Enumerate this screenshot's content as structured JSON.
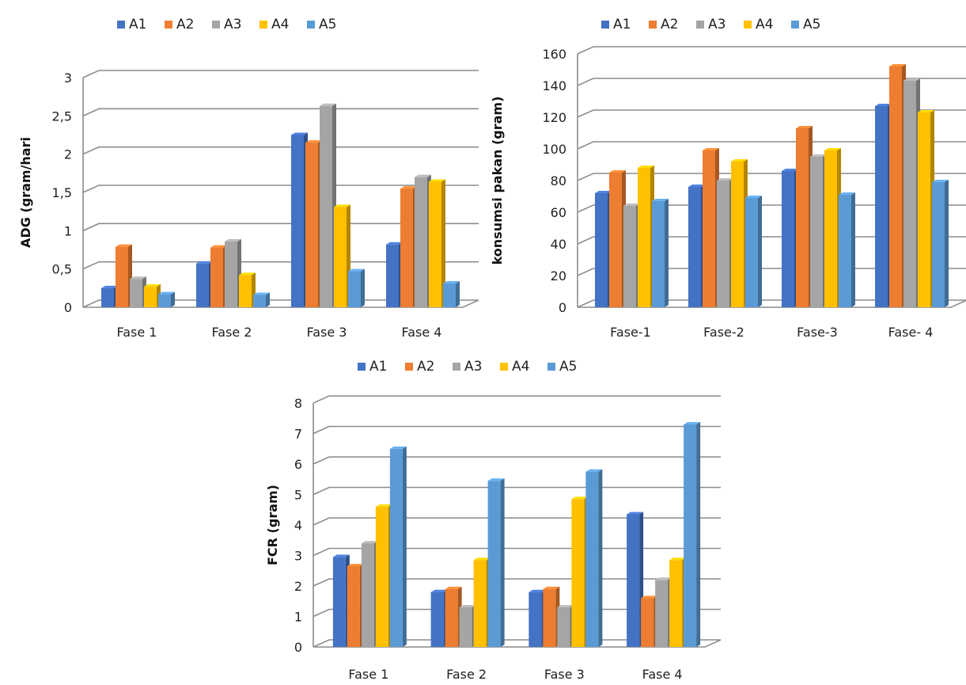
{
  "chart_data": [
    {
      "type": "bar",
      "title": "",
      "xlabel": "",
      "ylabel": "ADG (gram/hari",
      "categories": [
        "Fase 1",
        "Fase 2",
        "Fase 3",
        "Fase 4"
      ],
      "ylim": [
        0,
        3
      ],
      "yticks": [
        "0",
        "0,5",
        "1",
        "1,5",
        "2",
        "2,5",
        "3"
      ],
      "ytick_values": [
        0,
        0.5,
        1,
        1.5,
        2,
        2.5,
        3
      ],
      "legend_position": "top",
      "grid": true,
      "series": [
        {
          "name": "A1",
          "color": "#4472C4",
          "values": [
            0.25,
            0.57,
            2.25,
            0.82
          ]
        },
        {
          "name": "A2",
          "color": "#ED7D31",
          "values": [
            0.79,
            0.78,
            2.15,
            1.55
          ]
        },
        {
          "name": "A3",
          "color": "#A5A5A5",
          "values": [
            0.37,
            0.86,
            2.63,
            1.7
          ]
        },
        {
          "name": "A4",
          "color": "#FFC000",
          "values": [
            0.27,
            0.42,
            1.31,
            1.64
          ]
        },
        {
          "name": "A5",
          "color": "#5B9BD5",
          "values": [
            0.17,
            0.16,
            0.47,
            0.31
          ]
        }
      ]
    },
    {
      "type": "bar",
      "title": "",
      "xlabel": "",
      "ylabel": "konsumsi pakan (gram)",
      "categories": [
        "Fase-1",
        "Fase-2",
        "Fase-3",
        "Fase- 4"
      ],
      "ylim": [
        0,
        160
      ],
      "yticks": [
        "0",
        "20",
        "40",
        "60",
        "80",
        "100",
        "120",
        "140",
        "160"
      ],
      "ytick_values": [
        0,
        20,
        40,
        60,
        80,
        100,
        120,
        140,
        160
      ],
      "legend_position": "top",
      "grid": true,
      "series": [
        {
          "name": "A1",
          "color": "#4472C4",
          "values": [
            72,
            76,
            86,
            127
          ]
        },
        {
          "name": "A2",
          "color": "#ED7D31",
          "values": [
            85,
            99,
            113,
            152
          ]
        },
        {
          "name": "A3",
          "color": "#A5A5A5",
          "values": [
            64,
            80,
            95,
            143
          ]
        },
        {
          "name": "A4",
          "color": "#FFC000",
          "values": [
            88,
            92,
            99,
            123
          ]
        },
        {
          "name": "A5",
          "color": "#5B9BD5",
          "values": [
            67,
            69,
            71,
            79
          ]
        }
      ]
    },
    {
      "type": "bar",
      "title": "",
      "xlabel": "",
      "ylabel": "FCR (gram)",
      "categories": [
        "Fase 1",
        "Fase 2",
        "Fase 3",
        "Fase 4"
      ],
      "ylim": [
        0,
        8
      ],
      "yticks": [
        "0",
        "1",
        "2",
        "3",
        "4",
        "5",
        "6",
        "7",
        "8"
      ],
      "ytick_values": [
        0,
        1,
        2,
        3,
        4,
        5,
        6,
        7,
        8
      ],
      "legend_position": "top",
      "grid": true,
      "series": [
        {
          "name": "A1",
          "color": "#4472C4",
          "values": [
            2.95,
            1.8,
            1.8,
            4.35
          ]
        },
        {
          "name": "A2",
          "color": "#ED7D31",
          "values": [
            2.65,
            1.9,
            1.9,
            1.6
          ]
        },
        {
          "name": "A3",
          "color": "#A5A5A5",
          "values": [
            3.4,
            1.3,
            1.3,
            2.2
          ]
        },
        {
          "name": "A4",
          "color": "#FFC000",
          "values": [
            4.6,
            2.85,
            4.85,
            2.85
          ]
        },
        {
          "name": "A5",
          "color": "#5B9BD5",
          "values": [
            6.5,
            5.45,
            5.75,
            7.3
          ]
        }
      ]
    }
  ]
}
